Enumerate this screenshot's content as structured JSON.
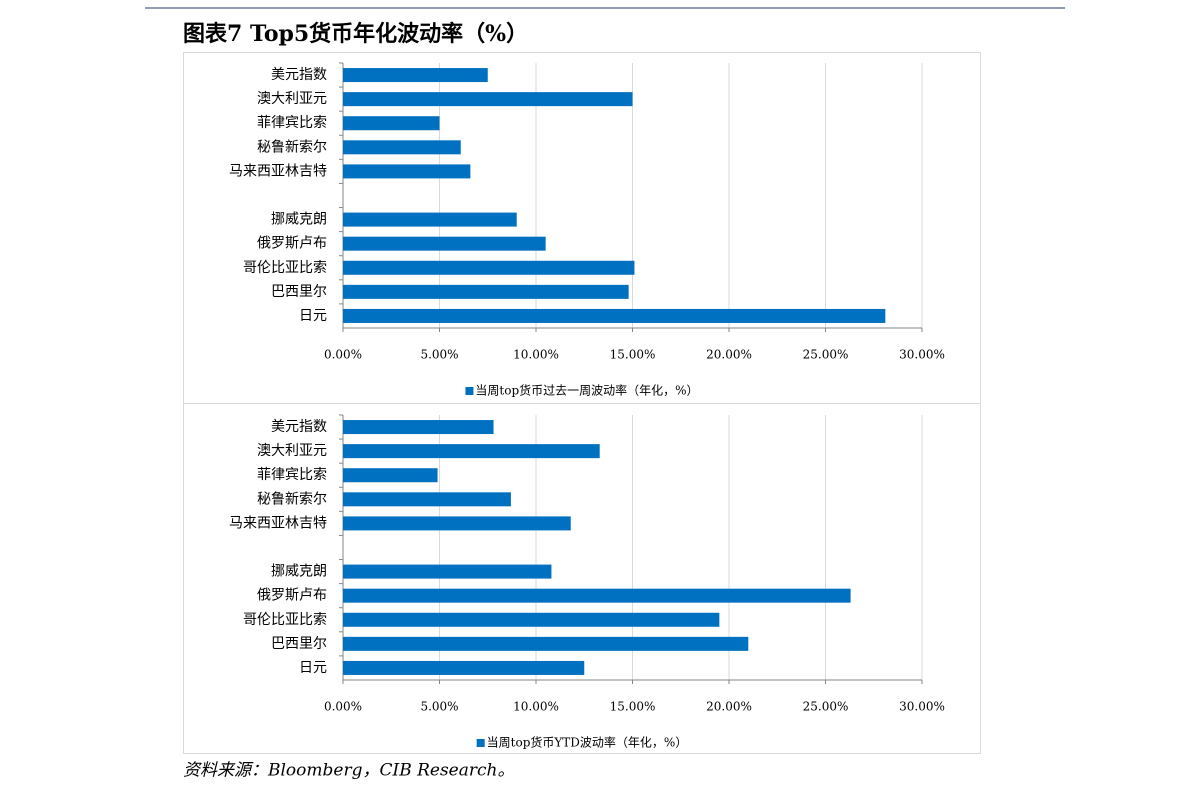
{
  "title": "图表7  Top5货币年化波动率（%）",
  "source": "资料来源：Bloomberg，CIB Research。",
  "chart_data": [
    {
      "type": "hbar",
      "categories": [
        "美元指数",
        "澳大利亚元",
        "菲律宾比索",
        "秘鲁新索尔",
        "马来西亚林吉特",
        null,
        "挪威克朗",
        "俄罗斯卢布",
        "哥伦比亚比索",
        "巴西里尔",
        "日元"
      ],
      "series": [
        {
          "name": "当周top货币过去一周波动率（年化，%）",
          "color": "#0070c0",
          "values": [
            7.5,
            15.0,
            5.0,
            6.1,
            6.6,
            null,
            9.0,
            10.5,
            15.1,
            14.8,
            28.1
          ]
        }
      ],
      "xlim": [
        0,
        30
      ],
      "xticks": [
        {
          "value": 0,
          "label": "0.00%"
        },
        {
          "value": 5,
          "label": "5.00%"
        },
        {
          "value": 10,
          "label": "10.00%"
        },
        {
          "value": 15,
          "label": "15.00%"
        },
        {
          "value": 20,
          "label": "20.00%"
        },
        {
          "value": 25,
          "label": "25.00%"
        },
        {
          "value": 30,
          "label": "30.00%"
        }
      ],
      "grid": true,
      "legend": "bottom"
    },
    {
      "type": "hbar",
      "categories": [
        "美元指数",
        "澳大利亚元",
        "菲律宾比索",
        "秘鲁新索尔",
        "马来西亚林吉特",
        null,
        "挪威克朗",
        "俄罗斯卢布",
        "哥伦比亚比索",
        "巴西里尔",
        "日元"
      ],
      "series": [
        {
          "name": "当周top货币YTD波动率（年化，%）",
          "color": "#0070c0",
          "values": [
            7.8,
            13.3,
            4.9,
            8.7,
            11.8,
            null,
            10.8,
            26.3,
            19.5,
            21.0,
            12.5
          ]
        }
      ],
      "xlim": [
        0,
        30
      ],
      "xticks": [
        {
          "value": 0,
          "label": "0.00%"
        },
        {
          "value": 5,
          "label": "5.00%"
        },
        {
          "value": 10,
          "label": "10.00%"
        },
        {
          "value": 15,
          "label": "15.00%"
        },
        {
          "value": 20,
          "label": "20.00%"
        },
        {
          "value": 25,
          "label": "25.00%"
        },
        {
          "value": 30,
          "label": "30.00%"
        }
      ],
      "grid": true,
      "legend": "bottom"
    }
  ]
}
